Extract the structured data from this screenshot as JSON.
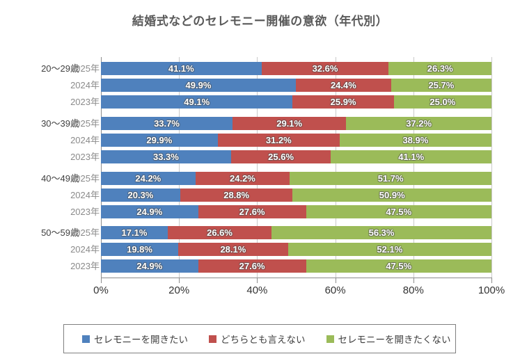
{
  "chart_data": {
    "type": "bar",
    "variant": "horizontal-stacked",
    "title": "結婚式などのセレモニー開催の意欲（年代別）",
    "unit": "%",
    "xlim": [
      0,
      100
    ],
    "x_ticks": [
      "0%",
      "20%",
      "40%",
      "60%",
      "80%",
      "100%"
    ],
    "grid": true,
    "legend_position": "bottom",
    "series": [
      {
        "name": "セレモニーを開きたい",
        "color": "#4F81BD"
      },
      {
        "name": "どちらとも言えない",
        "color": "#C0504D"
      },
      {
        "name": "セレモニーを開きたくない",
        "color": "#9BBB59"
      }
    ],
    "groups": [
      {
        "label": "20～29歳",
        "rows": [
          {
            "label": "2025年",
            "values": [
              41.1,
              32.6,
              26.3
            ]
          },
          {
            "label": "2024年",
            "values": [
              49.9,
              24.4,
              25.7
            ]
          },
          {
            "label": "2023年",
            "values": [
              49.1,
              25.9,
              25.0
            ]
          }
        ]
      },
      {
        "label": "30～39歳",
        "rows": [
          {
            "label": "2025年",
            "values": [
              33.7,
              29.1,
              37.2
            ]
          },
          {
            "label": "2024年",
            "values": [
              29.9,
              31.2,
              38.9
            ]
          },
          {
            "label": "2023年",
            "values": [
              33.3,
              25.6,
              41.1
            ]
          }
        ]
      },
      {
        "label": "40～49歳",
        "rows": [
          {
            "label": "2025年",
            "values": [
              24.2,
              24.2,
              51.7
            ]
          },
          {
            "label": "2024年",
            "values": [
              20.3,
              28.8,
              50.9
            ]
          },
          {
            "label": "2023年",
            "values": [
              24.9,
              27.6,
              47.5
            ]
          }
        ]
      },
      {
        "label": "50～59歳",
        "rows": [
          {
            "label": "2025年",
            "values": [
              17.1,
              26.6,
              56.3
            ]
          },
          {
            "label": "2024年",
            "values": [
              19.8,
              28.1,
              52.1
            ]
          },
          {
            "label": "2023年",
            "values": [
              24.9,
              27.6,
              47.5
            ]
          }
        ]
      }
    ]
  }
}
